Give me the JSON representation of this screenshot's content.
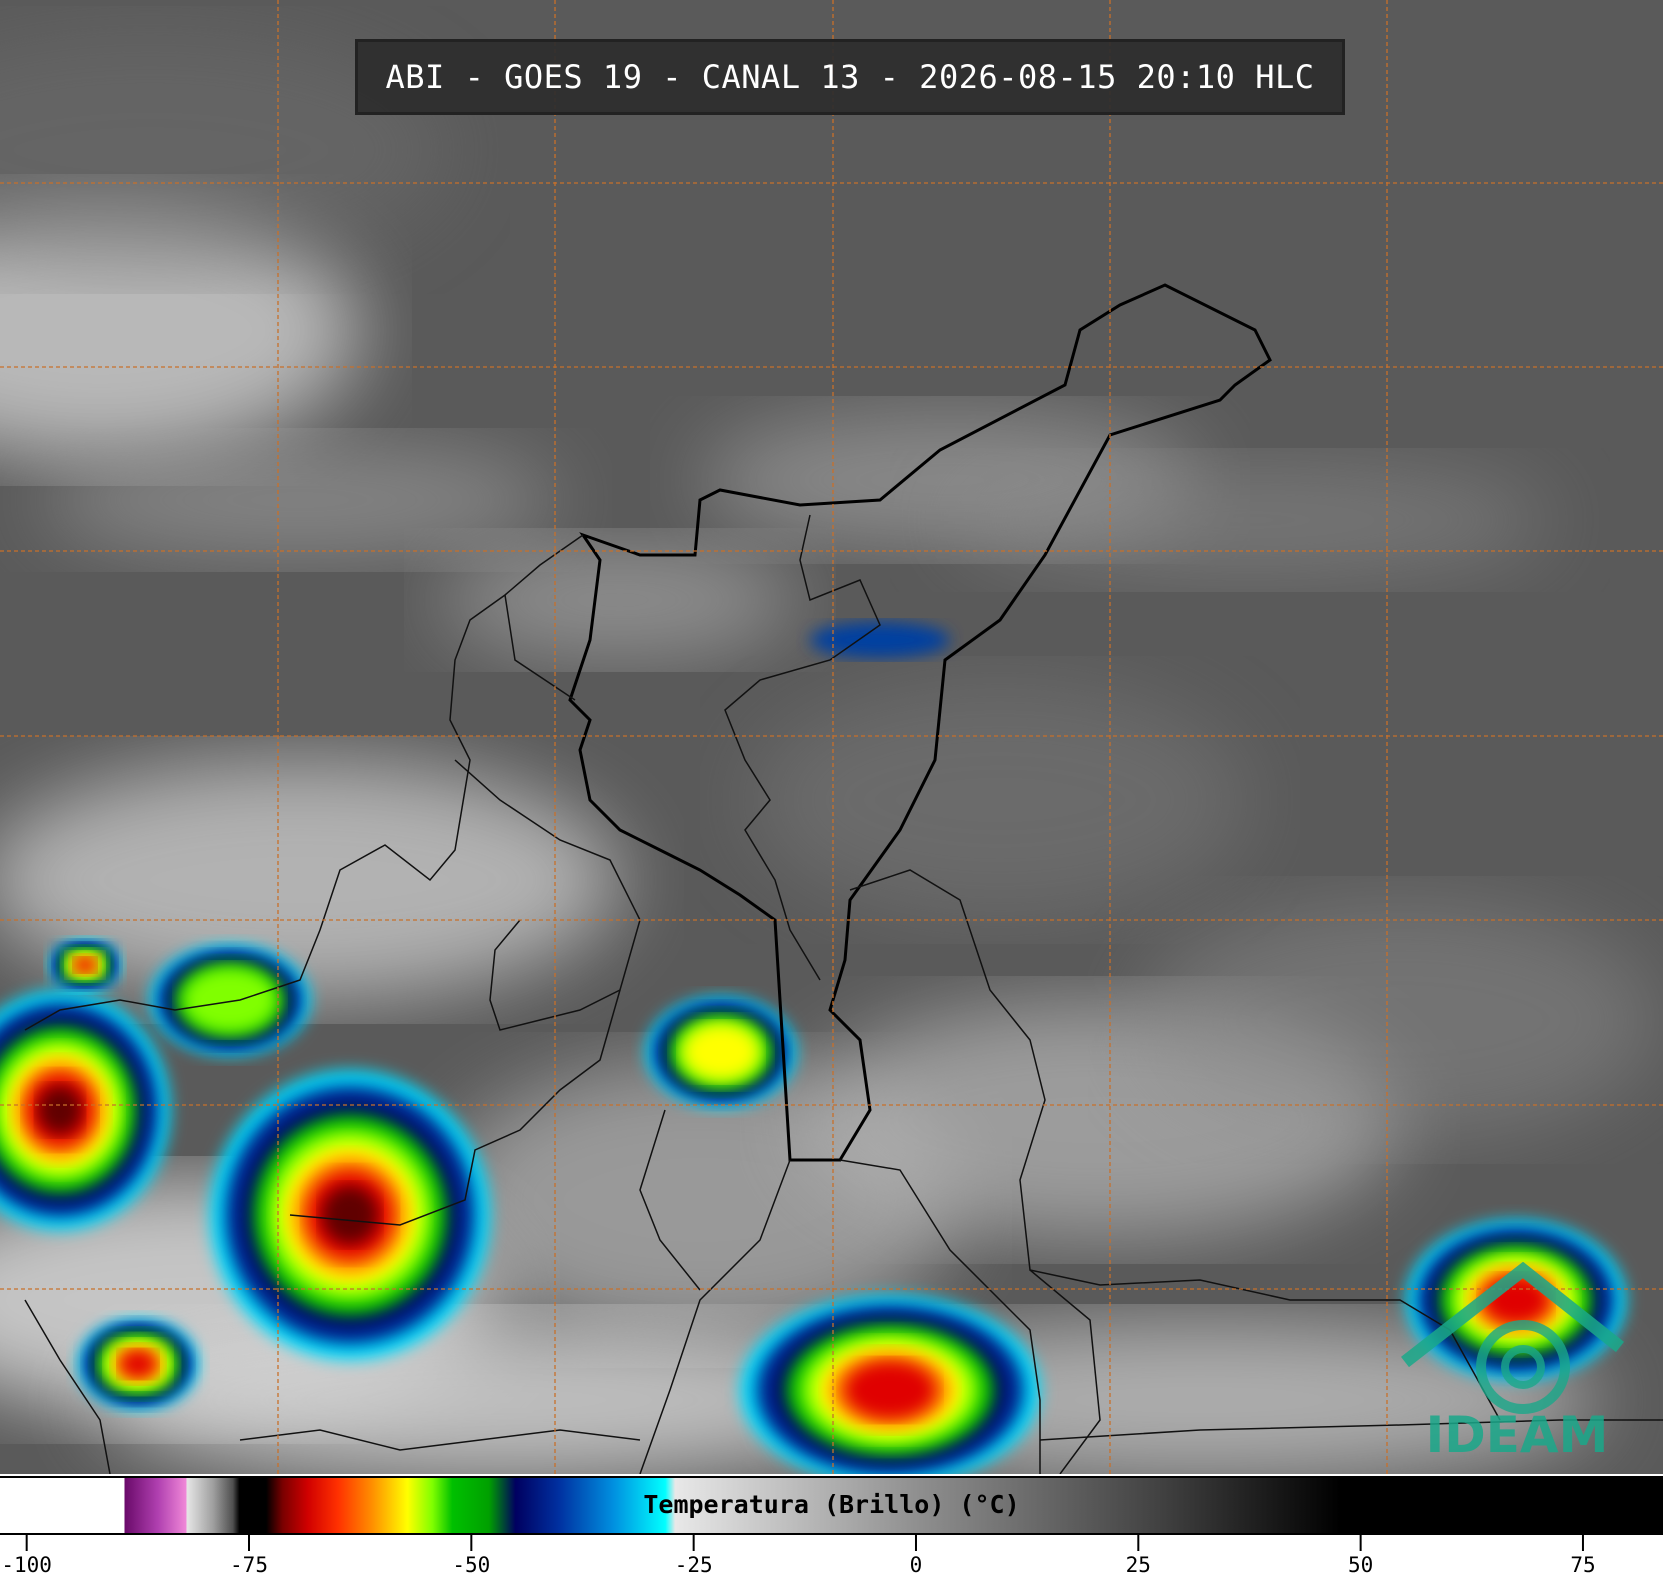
{
  "title": "ABI - GOES 19 - CANAL 13 - 2026-08-15 20:10 HLC",
  "colorbar": {
    "label": "Temperatura (Brillo) (°C)",
    "lim": [
      -103,
      84
    ],
    "ticks": [
      -100,
      -75,
      -50,
      -25,
      0,
      25,
      50,
      75
    ]
  },
  "logo": "IDEAM"
}
